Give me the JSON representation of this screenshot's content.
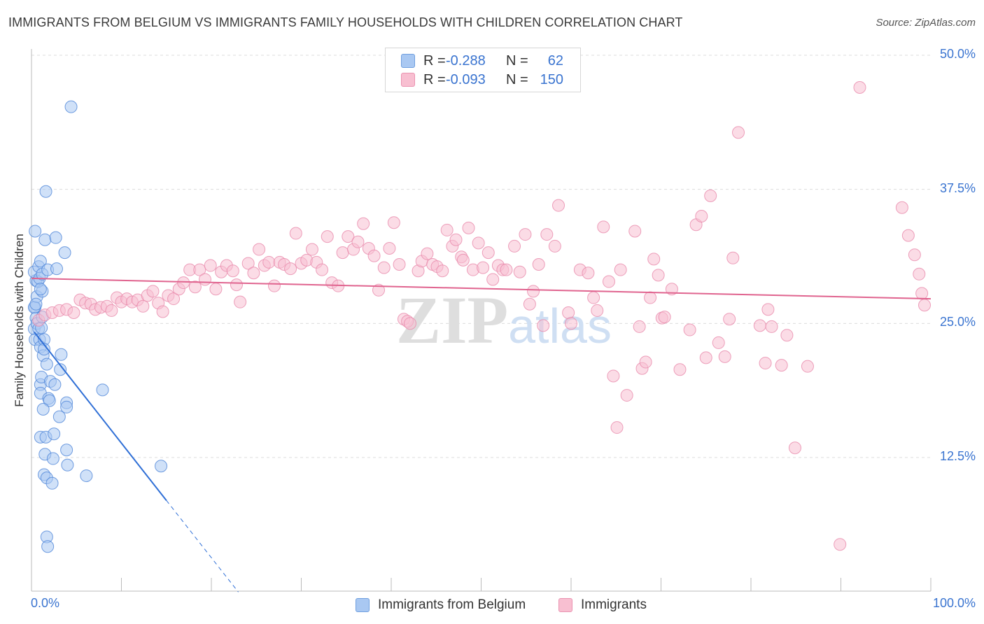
{
  "chart_data": {
    "type": "scatter",
    "title": "IMMIGRANTS FROM BELGIUM VS IMMIGRANTS FAMILY HOUSEHOLDS WITH CHILDREN CORRELATION CHART",
    "source": "Source: ZipAtlas.com",
    "xlabel": "",
    "ylabel": "Family Households with Children",
    "xlim": [
      0,
      100
    ],
    "ylim": [
      0,
      52
    ],
    "x_tick_labels": [
      "0.0%",
      "100.0%"
    ],
    "y_ticks": [
      12.5,
      25.0,
      37.5,
      50.0
    ],
    "y_tick_labels": [
      "12.5%",
      "25.0%",
      "37.5%",
      "50.0%"
    ],
    "grid": true,
    "watermark": "ZIPatlas",
    "legend_stats": [
      {
        "r_label": "R =",
        "r": "-0.288",
        "n_label": "N =",
        "n": "62",
        "color": "#a9c8f2",
        "stroke": "#6f9fdf"
      },
      {
        "r_label": "R =",
        "r": "-0.093",
        "n_label": "N =",
        "n": "150",
        "color": "#f8bfd1",
        "stroke": "#ea93b1"
      }
    ],
    "series": [
      {
        "name": "Immigrants from Belgium",
        "color": "#a9c8f2",
        "stroke": "#4f86d8",
        "trend_color": "#2f6fd6",
        "trend": {
          "x0": 0.3,
          "y0": 24.2,
          "x1": 15.0,
          "y1": 8.5,
          "dash_to_x": 23.0
        },
        "points": [
          [
            0.3,
            24.5
          ],
          [
            0.4,
            26.5
          ],
          [
            0.5,
            29.0
          ],
          [
            0.3,
            26.5
          ],
          [
            0.6,
            27.5
          ],
          [
            0.5,
            25.5
          ],
          [
            0.4,
            23.5
          ],
          [
            0.6,
            25.0
          ],
          [
            0.3,
            29.8
          ],
          [
            0.8,
            30.3
          ],
          [
            0.4,
            33.6
          ],
          [
            1.2,
            28.0
          ],
          [
            1.0,
            30.8
          ],
          [
            1.5,
            32.8
          ],
          [
            1.6,
            37.3
          ],
          [
            0.7,
            28.9
          ],
          [
            0.9,
            29.2
          ],
          [
            1.2,
            29.6
          ],
          [
            1.8,
            30.0
          ],
          [
            2.7,
            33.0
          ],
          [
            2.8,
            30.1
          ],
          [
            3.7,
            31.6
          ],
          [
            4.4,
            45.2
          ],
          [
            0.8,
            24.5
          ],
          [
            0.9,
            23.5
          ],
          [
            1.0,
            22.8
          ],
          [
            1.1,
            24.6
          ],
          [
            1.4,
            23.5
          ],
          [
            1.2,
            25.6
          ],
          [
            1.3,
            22.0
          ],
          [
            1.7,
            21.2
          ],
          [
            3.2,
            20.7
          ],
          [
            3.3,
            22.1
          ],
          [
            1.0,
            19.3
          ],
          [
            1.1,
            20.0
          ],
          [
            2.1,
            19.6
          ],
          [
            1.0,
            18.5
          ],
          [
            1.9,
            18.0
          ],
          [
            2.0,
            17.8
          ],
          [
            3.9,
            17.6
          ],
          [
            7.9,
            18.8
          ],
          [
            1.3,
            17.0
          ],
          [
            3.1,
            16.3
          ],
          [
            3.9,
            17.2
          ],
          [
            1.0,
            14.4
          ],
          [
            1.6,
            14.4
          ],
          [
            2.5,
            14.7
          ],
          [
            3.9,
            13.2
          ],
          [
            1.5,
            12.8
          ],
          [
            2.4,
            12.4
          ],
          [
            4.0,
            11.8
          ],
          [
            14.4,
            11.7
          ],
          [
            6.1,
            10.8
          ],
          [
            1.4,
            10.9
          ],
          [
            1.7,
            10.6
          ],
          [
            2.3,
            10.1
          ],
          [
            1.7,
            5.1
          ],
          [
            1.8,
            4.2
          ],
          [
            0.5,
            26.8
          ],
          [
            1.0,
            28.2
          ],
          [
            1.4,
            22.6
          ],
          [
            2.6,
            19.3
          ]
        ]
      },
      {
        "name": "Immigrants",
        "color": "#f8bfd1",
        "stroke": "#e98aab",
        "trend_color": "#e0648f",
        "trend": {
          "x0": 0.0,
          "y0": 29.2,
          "x1": 100.0,
          "y1": 27.3
        },
        "points": [
          [
            0.8,
            25.3
          ],
          [
            1.5,
            25.8
          ],
          [
            2.3,
            26.0
          ],
          [
            3.1,
            26.2
          ],
          [
            3.9,
            26.3
          ],
          [
            4.7,
            26.0
          ],
          [
            5.4,
            27.2
          ],
          [
            6.0,
            26.9
          ],
          [
            6.6,
            26.8
          ],
          [
            7.1,
            26.3
          ],
          [
            7.7,
            26.5
          ],
          [
            8.4,
            26.6
          ],
          [
            8.9,
            26.2
          ],
          [
            9.5,
            27.4
          ],
          [
            10.0,
            27.0
          ],
          [
            10.6,
            27.3
          ],
          [
            11.2,
            27.0
          ],
          [
            11.8,
            27.2
          ],
          [
            12.4,
            26.6
          ],
          [
            12.9,
            27.6
          ],
          [
            13.5,
            28.0
          ],
          [
            14.1,
            26.9
          ],
          [
            14.6,
            26.1
          ],
          [
            15.2,
            27.6
          ],
          [
            15.8,
            27.3
          ],
          [
            16.4,
            28.2
          ],
          [
            16.9,
            28.8
          ],
          [
            17.6,
            30.0
          ],
          [
            18.2,
            28.4
          ],
          [
            18.7,
            30.0
          ],
          [
            19.3,
            29.1
          ],
          [
            19.9,
            30.4
          ],
          [
            20.5,
            28.2
          ],
          [
            21.1,
            29.8
          ],
          [
            21.7,
            30.4
          ],
          [
            22.4,
            29.9
          ],
          [
            22.8,
            28.6
          ],
          [
            23.2,
            27.0
          ],
          [
            24.1,
            30.6
          ],
          [
            24.7,
            29.7
          ],
          [
            25.3,
            31.9
          ],
          [
            25.9,
            30.4
          ],
          [
            26.4,
            30.7
          ],
          [
            27.0,
            28.5
          ],
          [
            27.6,
            30.7
          ],
          [
            28.1,
            30.5
          ],
          [
            28.8,
            30.1
          ],
          [
            29.4,
            33.4
          ],
          [
            30.0,
            30.6
          ],
          [
            30.6,
            30.9
          ],
          [
            31.2,
            31.9
          ],
          [
            31.7,
            30.7
          ],
          [
            32.3,
            30.0
          ],
          [
            32.9,
            33.1
          ],
          [
            33.4,
            28.8
          ],
          [
            34.1,
            28.5
          ],
          [
            34.6,
            31.6
          ],
          [
            35.2,
            33.1
          ],
          [
            35.8,
            31.9
          ],
          [
            36.3,
            32.6
          ],
          [
            36.9,
            34.3
          ],
          [
            37.5,
            32.0
          ],
          [
            38.1,
            31.3
          ],
          [
            38.6,
            28.1
          ],
          [
            39.2,
            30.2
          ],
          [
            39.8,
            32.0
          ],
          [
            40.3,
            34.4
          ],
          [
            40.9,
            30.5
          ],
          [
            41.4,
            25.4
          ],
          [
            41.8,
            25.2
          ],
          [
            42.1,
            25.0
          ],
          [
            43.0,
            29.9
          ],
          [
            43.4,
            30.8
          ],
          [
            44.0,
            31.5
          ],
          [
            44.6,
            30.5
          ],
          [
            45.1,
            30.3
          ],
          [
            45.7,
            29.9
          ],
          [
            46.2,
            33.7
          ],
          [
            46.8,
            32.2
          ],
          [
            47.2,
            32.8
          ],
          [
            47.8,
            31.2
          ],
          [
            48.6,
            33.9
          ],
          [
            48.0,
            30.9
          ],
          [
            49.1,
            30.0
          ],
          [
            49.7,
            32.5
          ],
          [
            50.2,
            30.2
          ],
          [
            50.8,
            31.6
          ],
          [
            51.3,
            29.1
          ],
          [
            51.9,
            30.4
          ],
          [
            52.4,
            30.0
          ],
          [
            52.8,
            30.0
          ],
          [
            53.7,
            32.2
          ],
          [
            54.3,
            29.8
          ],
          [
            54.9,
            33.3
          ],
          [
            55.4,
            26.8
          ],
          [
            55.8,
            28.0
          ],
          [
            56.4,
            30.5
          ],
          [
            56.9,
            24.8
          ],
          [
            57.3,
            33.3
          ],
          [
            58.2,
            32.2
          ],
          [
            58.6,
            36.0
          ],
          [
            59.7,
            26.0
          ],
          [
            60.0,
            25.0
          ],
          [
            61.0,
            30.0
          ],
          [
            61.9,
            29.7
          ],
          [
            62.5,
            27.4
          ],
          [
            62.9,
            26.2
          ],
          [
            63.6,
            34.0
          ],
          [
            64.2,
            28.9
          ],
          [
            64.7,
            20.1
          ],
          [
            65.5,
            30.0
          ],
          [
            65.1,
            15.3
          ],
          [
            66.2,
            18.3
          ],
          [
            67.1,
            33.6
          ],
          [
            67.6,
            24.7
          ],
          [
            67.9,
            20.8
          ],
          [
            68.3,
            21.4
          ],
          [
            68.8,
            27.4
          ],
          [
            69.2,
            31.0
          ],
          [
            69.7,
            29.5
          ],
          [
            70.1,
            25.5
          ],
          [
            70.4,
            25.6
          ],
          [
            71.2,
            28.2
          ],
          [
            72.1,
            20.7
          ],
          [
            73.2,
            24.4
          ],
          [
            73.9,
            34.2
          ],
          [
            74.5,
            35.0
          ],
          [
            75.0,
            21.8
          ],
          [
            75.5,
            36.9
          ],
          [
            76.4,
            23.2
          ],
          [
            77.1,
            21.9
          ],
          [
            78.0,
            31.1
          ],
          [
            78.6,
            42.8
          ],
          [
            81.0,
            24.8
          ],
          [
            81.6,
            21.3
          ],
          [
            81.9,
            26.3
          ],
          [
            82.3,
            24.7
          ],
          [
            83.4,
            21.1
          ],
          [
            84.0,
            23.9
          ],
          [
            84.9,
            13.4
          ],
          [
            86.3,
            21.0
          ],
          [
            77.6,
            25.4
          ],
          [
            92.1,
            47.0
          ],
          [
            89.9,
            4.4
          ],
          [
            96.8,
            35.8
          ],
          [
            97.5,
            33.2
          ],
          [
            98.2,
            31.4
          ],
          [
            98.7,
            29.6
          ],
          [
            99.0,
            27.8
          ],
          [
            99.3,
            26.7
          ]
        ]
      }
    ]
  }
}
